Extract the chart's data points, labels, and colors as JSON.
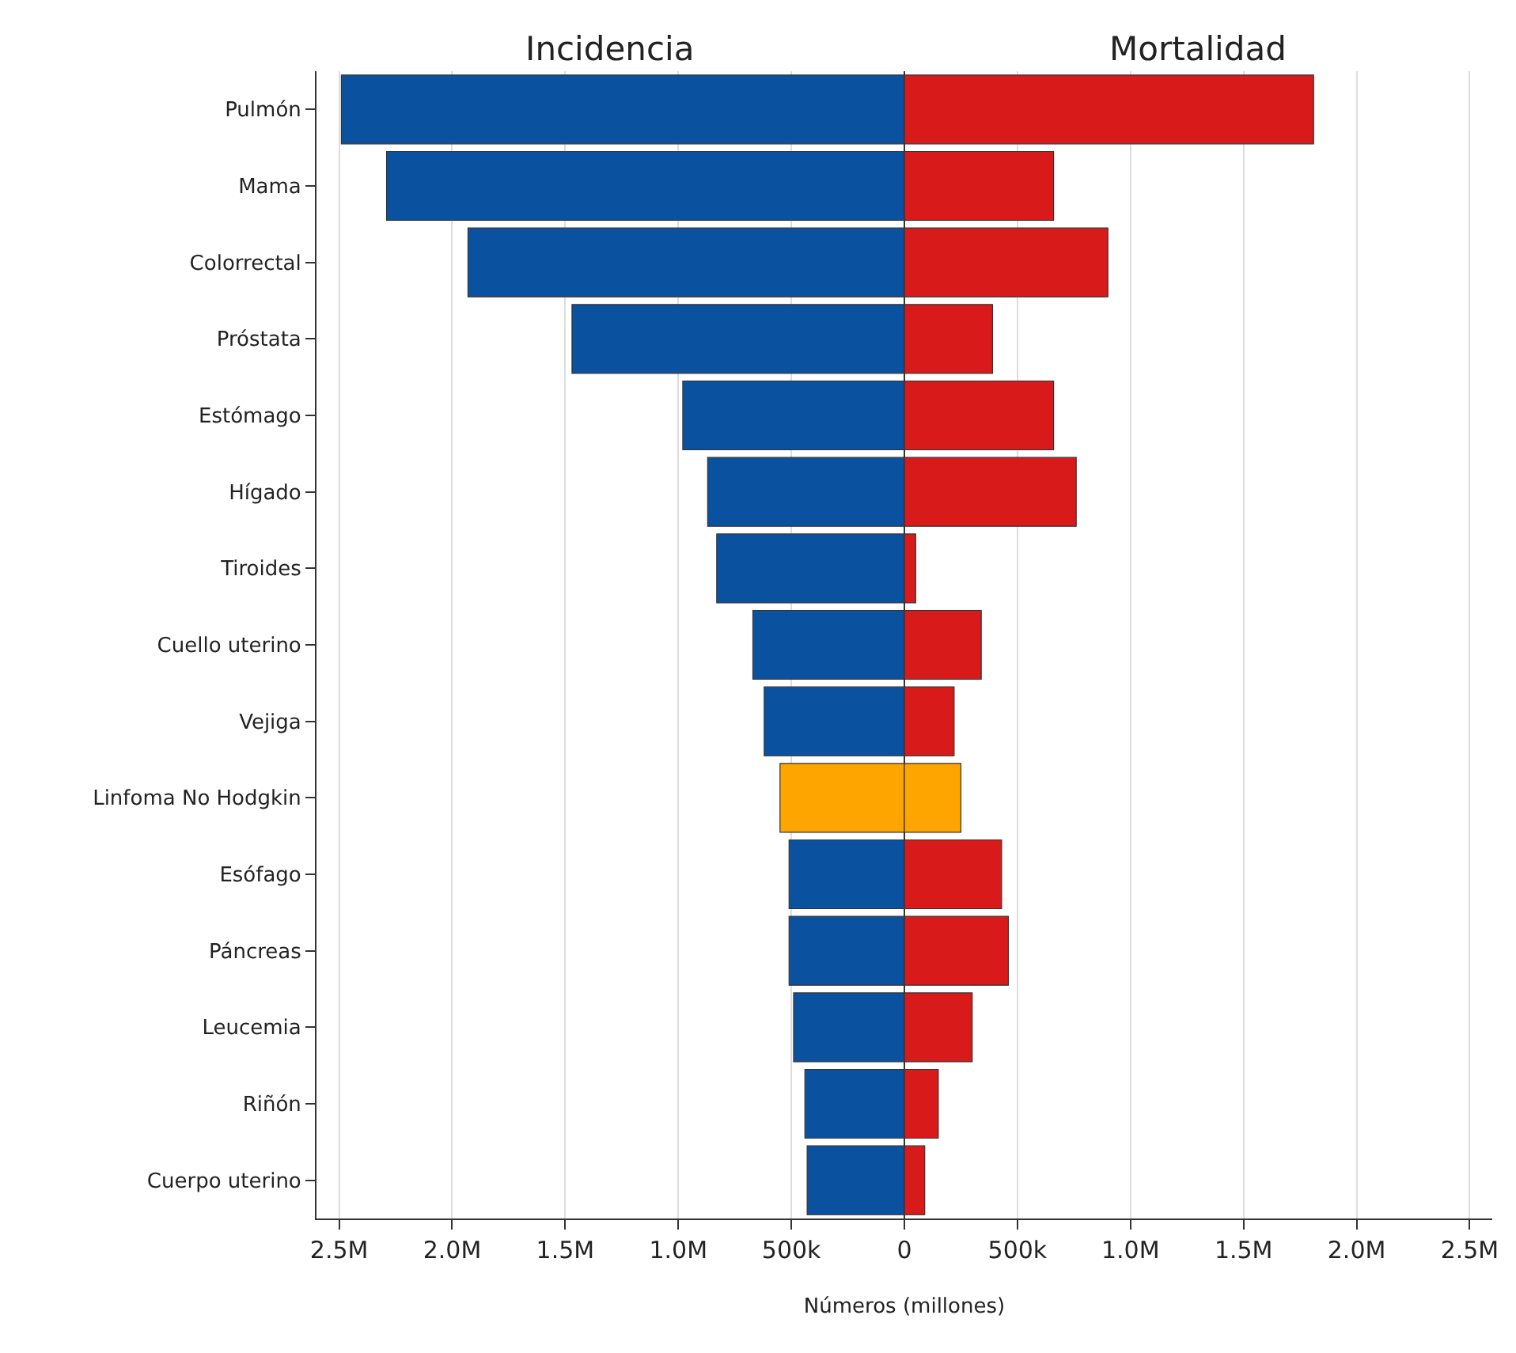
{
  "chart_data": {
    "type": "bar",
    "orientation": "horizontal",
    "categories": [
      "Pulmón",
      "Mama",
      "Colorrectal",
      "Próstata",
      "Estómago",
      "Hígado",
      "Tiroides",
      "Cuello uterino",
      "Vejiga",
      "Linfoma No Hodgkin",
      "Esófago",
      "Páncreas",
      "Leucemia",
      "Riñón",
      "Cuerpo uterino"
    ],
    "series": [
      {
        "name": "Incidencia",
        "colors": [
          "#0a52a0",
          "#0a52a0",
          "#0a52a0",
          "#0a52a0",
          "#0a52a0",
          "#0a52a0",
          "#0a52a0",
          "#0a52a0",
          "#0a52a0",
          "#ffa500",
          "#0a52a0",
          "#0a52a0",
          "#0a52a0",
          "#0a52a0",
          "#0a52a0"
        ],
        "values": [
          -2490000,
          -2290000,
          -1930000,
          -1470000,
          -980000,
          -870000,
          -830000,
          -670000,
          -620000,
          -550000,
          -510000,
          -510000,
          -490000,
          -440000,
          -430000
        ]
      },
      {
        "name": "Mortalidad",
        "colors": [
          "#d91a1a",
          "#d91a1a",
          "#d91a1a",
          "#d91a1a",
          "#d91a1a",
          "#d91a1a",
          "#d91a1a",
          "#d91a1a",
          "#d91a1a",
          "#ffa500",
          "#d91a1a",
          "#d91a1a",
          "#d91a1a",
          "#d91a1a",
          "#d91a1a"
        ],
        "values": [
          1810000,
          660000,
          900000,
          390000,
          660000,
          760000,
          50000,
          340000,
          220000,
          250000,
          430000,
          460000,
          300000,
          150000,
          90000
        ]
      }
    ],
    "xlim": [
      -2600000,
      2600000
    ],
    "xticks": [
      {
        "value": -2500000,
        "label": "2.5M"
      },
      {
        "value": -2000000,
        "label": "2.0M"
      },
      {
        "value": -1500000,
        "label": "1.5M"
      },
      {
        "value": -1000000,
        "label": "1.0M"
      },
      {
        "value": -500000,
        "label": "500k"
      },
      0,
      {
        "value": 500000,
        "label": "500k"
      },
      {
        "value": 1000000,
        "label": "1.0M"
      },
      {
        "value": 1500000,
        "label": "1.5M"
      },
      {
        "value": 2000000,
        "label": "2.0M"
      },
      {
        "value": 2500000,
        "label": "2.5M"
      }
    ],
    "xlabel": "Números (millones)",
    "grid": "x",
    "stacked": true
  }
}
